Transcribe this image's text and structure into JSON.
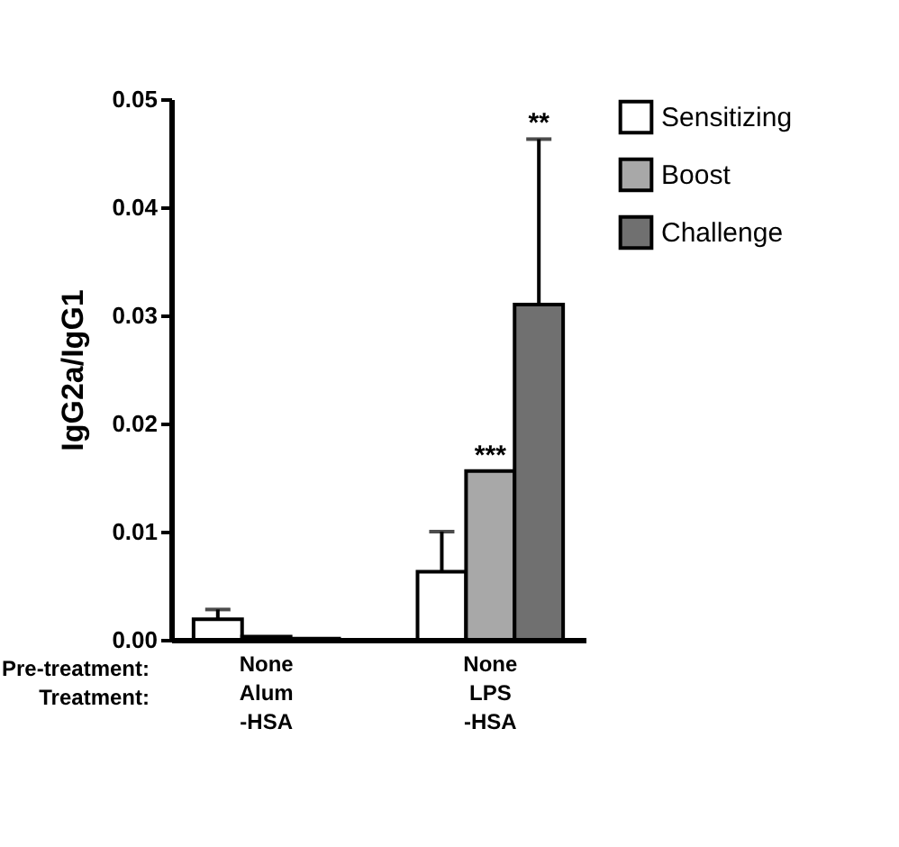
{
  "chart_data": {
    "type": "bar",
    "ylabel": "IgG2a/IgG1",
    "categories": [
      "None\nAlum\n-HSA",
      "None\nLPS\n-HSA"
    ],
    "series": [
      {
        "name": "Sensitizing",
        "color": "#ffffff",
        "values": [
          0.0019,
          0.0063
        ],
        "errors": [
          [
            0.0019,
            0.0028
          ],
          [
            0.0063,
            0.01
          ]
        ]
      },
      {
        "name": "Boost",
        "color": "#a8a8a8",
        "values": [
          0.0003,
          0.0156
        ],
        "errors": [
          null,
          null
        ]
      },
      {
        "name": "Challenge",
        "color": "#707070",
        "values": [
          0.0001,
          0.031
        ],
        "errors": [
          null,
          [
            0.031,
            0.0463
          ]
        ]
      }
    ],
    "ylim": [
      0,
      0.05
    ],
    "yticks": [
      {
        "value": 0,
        "label": "0.00"
      },
      {
        "value": 0.01,
        "label": "0.01"
      },
      {
        "value": 0.02,
        "label": "0.02"
      },
      {
        "value": 0.03,
        "label": "0.03"
      },
      {
        "value": 0.04,
        "label": "0.04"
      },
      {
        "value": 0.05,
        "label": "0.05"
      }
    ],
    "annotations": [
      "Pre-treatment:",
      "Treatment:",
      {
        "text": "***",
        "x": "None\nLPS\n-HSA",
        "y": 0.0156
      },
      "**"
    ],
    "legend": "right",
    "grid": false
  }
}
